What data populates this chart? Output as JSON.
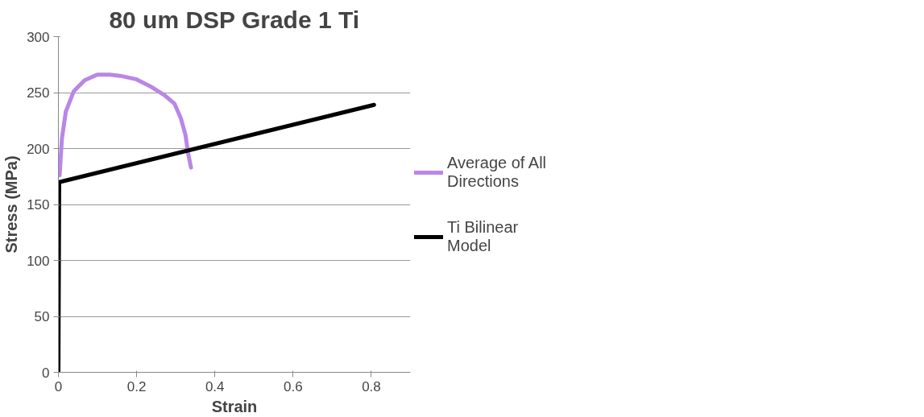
{
  "chart_data": {
    "type": "line",
    "title": "80 um DSP Grade 1 Ti",
    "xlabel": "Strain",
    "ylabel": "Stress (MPa)",
    "xlim": [
      0,
      0.9
    ],
    "ylim": [
      0,
      300
    ],
    "xticks": [
      0,
      0.2,
      0.4,
      0.6,
      0.8
    ],
    "yticks": [
      0,
      50,
      100,
      150,
      200,
      250,
      300
    ],
    "grid": "y",
    "legend": "right",
    "marker": "none",
    "line_style": "solid",
    "series": [
      {
        "name": "Average of All Directions",
        "color": "#b987e6",
        "x": [
          0.003,
          0.009,
          0.019,
          0.039,
          0.067,
          0.099,
          0.131,
          0.158,
          0.198,
          0.238,
          0.27,
          0.297,
          0.313,
          0.325,
          0.331,
          0.339
        ],
        "values": [
          176,
          209,
          233,
          251,
          261,
          266,
          266,
          265,
          262,
          255,
          248,
          240,
          227,
          212,
          197,
          183
        ]
      },
      {
        "name": "Ti Bilinear Model",
        "color": "#000000",
        "x": [
          0,
          0.002,
          0.807
        ],
        "values": [
          0,
          170,
          239
        ]
      }
    ]
  }
}
